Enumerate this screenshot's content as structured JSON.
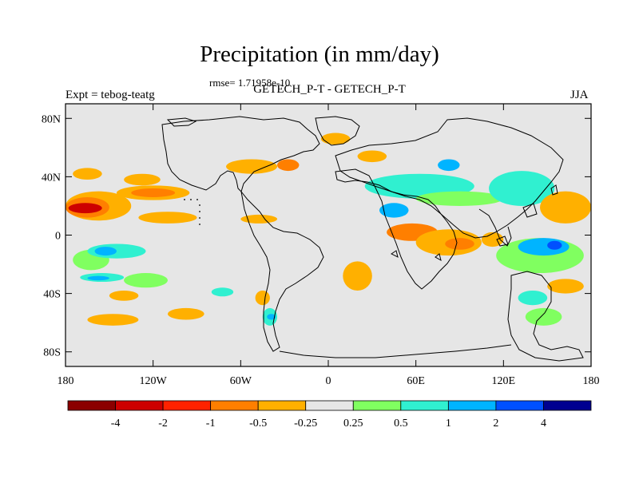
{
  "chart_data": {
    "type": "heatmap",
    "title": "Precipitation (in mm/day)",
    "subtitle": "GETECH_P-T - GETECH_P-T",
    "annotation": "rmse= 1.71958e-10",
    "left_label": "Expt = tebog-teatg",
    "right_label": "JJA",
    "x_axis": {
      "range": [
        -180,
        180
      ],
      "ticks": [
        -180,
        -120,
        -60,
        0,
        60,
        120,
        180
      ],
      "tick_labels": [
        "180",
        "120W",
        "60W",
        "0",
        "60E",
        "120E",
        "180"
      ]
    },
    "y_axis": {
      "range": [
        -90,
        90
      ],
      "ticks": [
        80,
        40,
        0,
        -40,
        -80
      ],
      "tick_labels": [
        "80N",
        "40N",
        "0",
        "40S",
        "80S"
      ]
    },
    "colorbar": {
      "labels": [
        "-4",
        "-2",
        "-1",
        "-0.5",
        "-0.25",
        "0.25",
        "0.5",
        "1",
        "2",
        "4"
      ],
      "colors": [
        "#8b0000",
        "#cd0000",
        "#ff2200",
        "#ff7f00",
        "#ffb000",
        "#e6e6e6",
        "#80ff60",
        "#30f0d0",
        "#00b4ff",
        "#0050ff",
        "#000090"
      ]
    },
    "background_color": "#e6e6e6",
    "regions": [
      {
        "level": 4,
        "lon": [
          -180,
          -135
        ],
        "lat": [
          10,
          30
        ]
      },
      {
        "level": 3,
        "lon": [
          -180,
          -150
        ],
        "lat": [
          12,
          26
        ]
      },
      {
        "level": 1,
        "lon": [
          -178,
          -155
        ],
        "lat": [
          15,
          22
        ]
      },
      {
        "level": 4,
        "lon": [
          -145,
          -95
        ],
        "lat": [
          24,
          34
        ]
      },
      {
        "level": 3,
        "lon": [
          -135,
          -105
        ],
        "lat": [
          26,
          32
        ]
      },
      {
        "level": 4,
        "lon": [
          -130,
          -90
        ],
        "lat": [
          8,
          16
        ]
      },
      {
        "level": 4,
        "lon": [
          -175,
          -155
        ],
        "lat": [
          38,
          46
        ]
      },
      {
        "level": 4,
        "lon": [
          -140,
          -115
        ],
        "lat": [
          34,
          42
        ]
      },
      {
        "level": 6,
        "lon": [
          -175,
          -150
        ],
        "lat": [
          -24,
          -10
        ]
      },
      {
        "level": 7,
        "lon": [
          -165,
          -125
        ],
        "lat": [
          -16,
          -6
        ]
      },
      {
        "level": 8,
        "lon": [
          -160,
          -145
        ],
        "lat": [
          -14,
          -8
        ]
      },
      {
        "level": 6,
        "lon": [
          -140,
          -110
        ],
        "lat": [
          -36,
          -26
        ]
      },
      {
        "level": 7,
        "lon": [
          -170,
          -140
        ],
        "lat": [
          -32,
          -26
        ]
      },
      {
        "level": 8,
        "lon": [
          -165,
          -150
        ],
        "lat": [
          -31,
          -28
        ]
      },
      {
        "level": 4,
        "lon": [
          -150,
          -130
        ],
        "lat": [
          -45,
          -38
        ]
      },
      {
        "level": 4,
        "lon": [
          -165,
          -130
        ],
        "lat": [
          -62,
          -54
        ]
      },
      {
        "level": 4,
        "lon": [
          -110,
          -85
        ],
        "lat": [
          -58,
          -50
        ]
      },
      {
        "level": 7,
        "lon": [
          -80,
          -65
        ],
        "lat": [
          -42,
          -36
        ]
      },
      {
        "level": 4,
        "lon": [
          -50,
          -40
        ],
        "lat": [
          -48,
          -38
        ]
      },
      {
        "level": 7,
        "lon": [
          -45,
          -35
        ],
        "lat": [
          -62,
          -50
        ]
      },
      {
        "level": 8,
        "lon": [
          -42,
          -36
        ],
        "lat": [
          -58,
          -54
        ]
      },
      {
        "level": 4,
        "lon": [
          -70,
          -35
        ],
        "lat": [
          42,
          52
        ]
      },
      {
        "level": 3,
        "lon": [
          -35,
          -20
        ],
        "lat": [
          44,
          52
        ]
      },
      {
        "level": 4,
        "lon": [
          -60,
          -35
        ],
        "lat": [
          8,
          14
        ]
      },
      {
        "level": 4,
        "lon": [
          -5,
          15
        ],
        "lat": [
          62,
          70
        ]
      },
      {
        "level": 4,
        "lon": [
          20,
          40
        ],
        "lat": [
          50,
          58
        ]
      },
      {
        "level": 7,
        "lon": [
          25,
          100
        ],
        "lat": [
          25,
          42
        ]
      },
      {
        "level": 6,
        "lon": [
          60,
          120
        ],
        "lat": [
          20,
          30
        ]
      },
      {
        "level": 8,
        "lon": [
          35,
          55
        ],
        "lat": [
          12,
          22
        ]
      },
      {
        "level": 8,
        "lon": [
          75,
          90
        ],
        "lat": [
          44,
          52
        ]
      },
      {
        "level": 7,
        "lon": [
          110,
          155
        ],
        "lat": [
          20,
          44
        ]
      },
      {
        "level": 3,
        "lon": [
          150,
          180
        ],
        "lat": [
          14,
          26
        ]
      },
      {
        "level": 4,
        "lon": [
          145,
          180
        ],
        "lat": [
          8,
          30
        ]
      },
      {
        "level": 3,
        "lon": [
          40,
          75
        ],
        "lat": [
          -4,
          8
        ]
      },
      {
        "level": 4,
        "lon": [
          60,
          105
        ],
        "lat": [
          -14,
          4
        ]
      },
      {
        "level": 3,
        "lon": [
          80,
          100
        ],
        "lat": [
          -10,
          -2
        ]
      },
      {
        "level": 4,
        "lon": [
          10,
          30
        ],
        "lat": [
          -38,
          -18
        ]
      },
      {
        "level": 6,
        "lon": [
          115,
          175
        ],
        "lat": [
          -26,
          -2
        ]
      },
      {
        "level": 8,
        "lon": [
          130,
          165
        ],
        "lat": [
          -14,
          -2
        ]
      },
      {
        "level": 9,
        "lon": [
          150,
          160
        ],
        "lat": [
          -10,
          -4
        ]
      },
      {
        "level": 4,
        "lon": [
          105,
          120
        ],
        "lat": [
          -8,
          2
        ]
      },
      {
        "level": 7,
        "lon": [
          130,
          150
        ],
        "lat": [
          -48,
          -38
        ]
      },
      {
        "level": 4,
        "lon": [
          150,
          175
        ],
        "lat": [
          -40,
          -30
        ]
      },
      {
        "level": 6,
        "lon": [
          135,
          160
        ],
        "lat": [
          -62,
          -50
        ]
      }
    ]
  }
}
